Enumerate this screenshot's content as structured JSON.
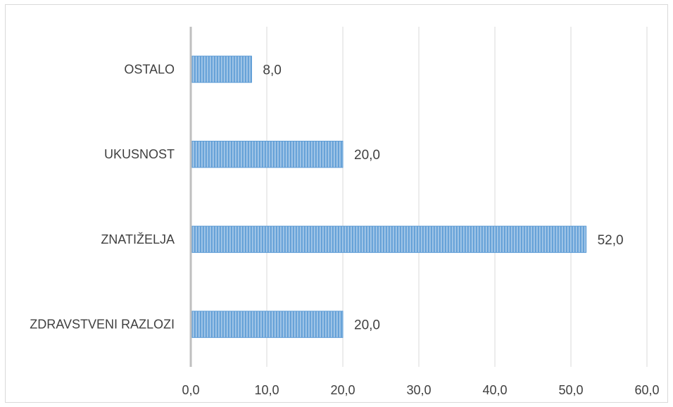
{
  "chart_data": {
    "type": "bar",
    "orientation": "horizontal",
    "categories": [
      "ZDRAVSTVENI RAZLOZI",
      "ZNATIŽELJA",
      "UKUSNOST",
      "OSTALO"
    ],
    "values": [
      20.0,
      52.0,
      20.0,
      8.0
    ],
    "value_labels": [
      "20,0",
      "52,0",
      "20,0",
      "8,0"
    ],
    "x_ticks": [
      "0,0",
      "10,0",
      "20,0",
      "30,0",
      "40,0",
      "50,0",
      "60,0"
    ],
    "xlim": [
      0,
      60
    ],
    "grid": "vertical",
    "legend": "none",
    "title": "",
    "xlabel": "",
    "ylabel": "",
    "bar_fill": "#9dc3e6",
    "bar_stripe": "#5b9bd5",
    "bar_edge": "#5b9bd5",
    "grid_color": "#d9d9d9",
    "axis_color": "#bfbfbf"
  }
}
